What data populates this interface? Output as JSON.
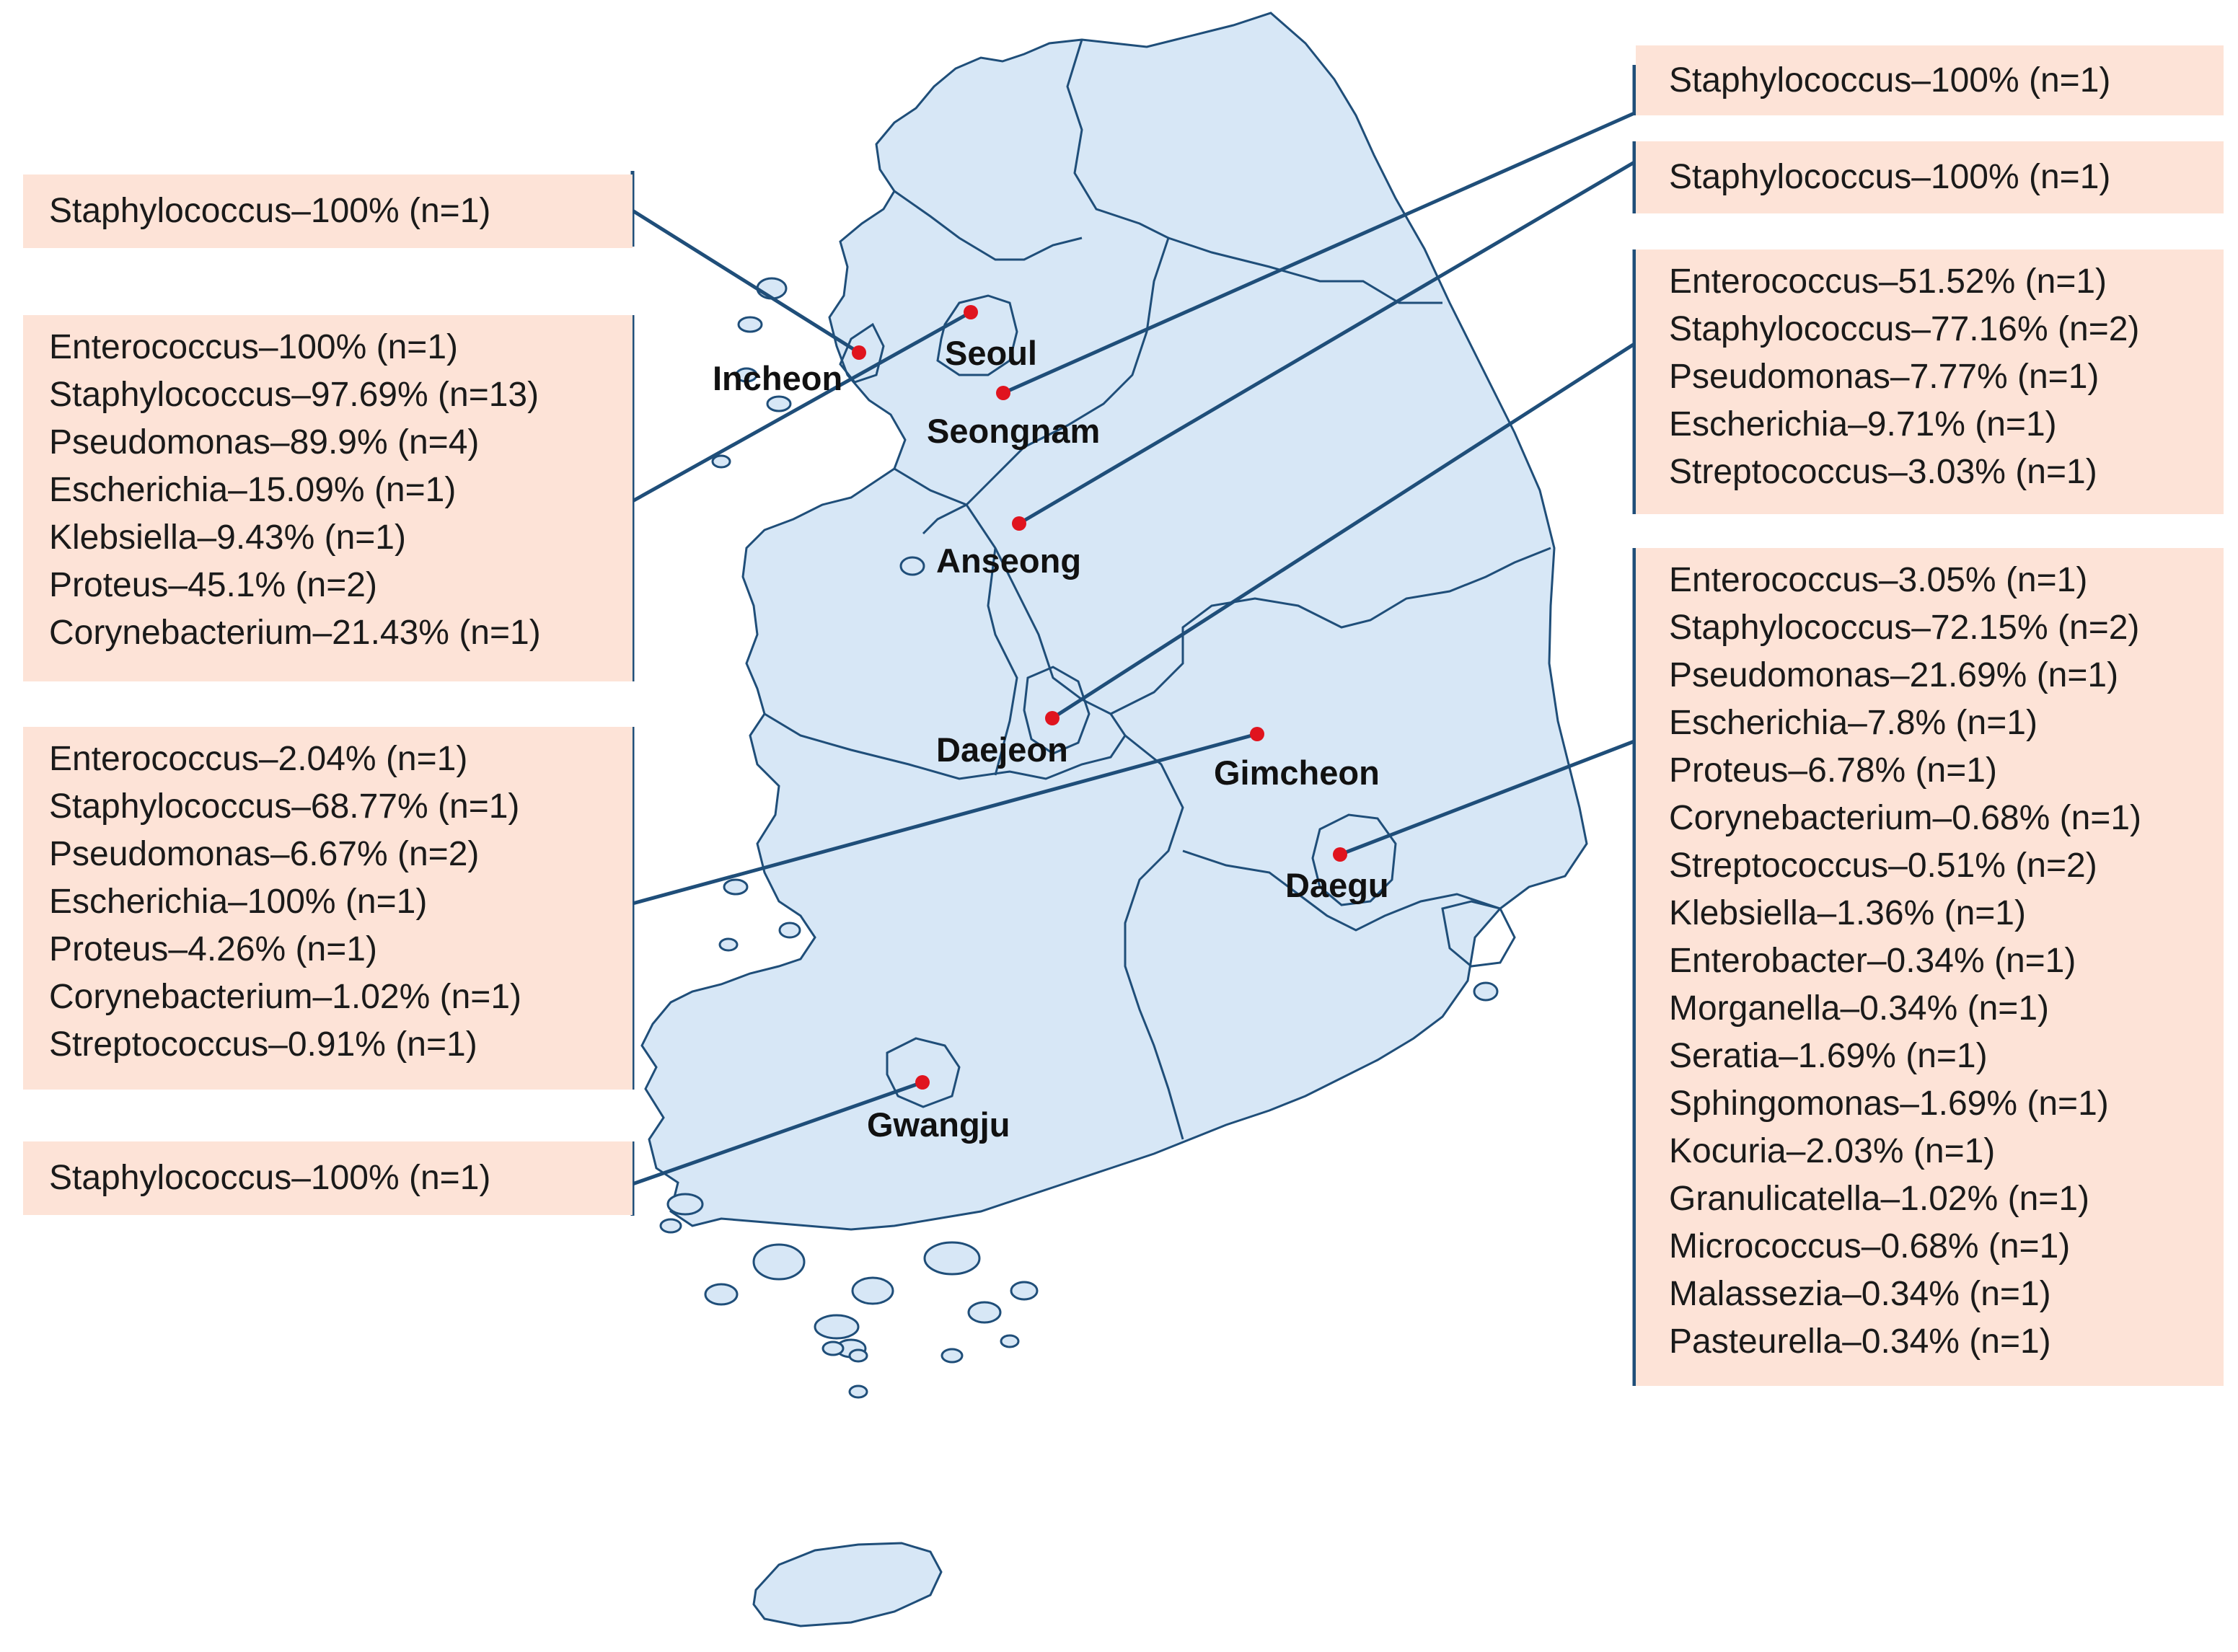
{
  "colors": {
    "land": "#d7e7f6",
    "border": "#1f4e79",
    "leader": "#1f4e79",
    "box_fill": "#fde3d7",
    "city_dot": "#e0141e"
  },
  "cities": [
    {
      "id": "seoul",
      "name": "Seoul"
    },
    {
      "id": "incheon",
      "name": "Incheon"
    },
    {
      "id": "seongnam",
      "name": "Seongnam"
    },
    {
      "id": "anseong",
      "name": "Anseong"
    },
    {
      "id": "daejeon",
      "name": "Daejeon"
    },
    {
      "id": "gimcheon",
      "name": "Gimcheon"
    },
    {
      "id": "daegu",
      "name": "Daegu"
    },
    {
      "id": "gwangju",
      "name": "Gwangju"
    }
  ],
  "boxes": {
    "seoul": [
      "Staphylococcus–100% (n=1)"
    ],
    "incheon": [
      "Enterococcus–100% (n=1)",
      "Staphylococcus–97.69% (n=13)",
      "Pseudomonas–89.9% (n=4)",
      "Escherichia–15.09% (n=1)",
      "Klebsiella–9.43% (n=1)",
      "Proteus–45.1% (n=2)",
      "Corynebacterium–21.43% (n=1)"
    ],
    "gimcheon": [
      "Enterococcus–2.04% (n=1)",
      "Staphylococcus–68.77% (n=1)",
      "Pseudomonas–6.67% (n=2)",
      "Escherichia–100% (n=1)",
      "Proteus–4.26% (n=1)",
      "Corynebacterium–1.02% (n=1)",
      "Streptococcus–0.91% (n=1)"
    ],
    "gwangju": [
      "Staphylococcus–100% (n=1)"
    ],
    "seongnam": [
      "Staphylococcus–100% (n=1)"
    ],
    "anseong": [
      "Staphylococcus–100% (n=1)"
    ],
    "daejeon": [
      "Enterococcus–51.52% (n=1)",
      "Staphylococcus–77.16% (n=2)",
      "Pseudomonas–7.77% (n=1)",
      "Escherichia–9.71% (n=1)",
      "Streptococcus–3.03% (n=1)"
    ],
    "daegu": [
      "Enterococcus–3.05% (n=1)",
      "Staphylococcus–72.15% (n=2)",
      "Pseudomonas–21.69% (n=1)",
      "Escherichia–7.8% (n=1)",
      "Proteus–6.78% (n=1)",
      "Corynebacterium–0.68% (n=1)",
      "Streptococcus–0.51% (n=2)",
      "Klebsiella–1.36% (n=1)",
      "Enterobacter–0.34% (n=1)",
      "Morganella–0.34% (n=1)",
      "Seratia–1.69% (n=1)",
      "Sphingomonas–1.69% (n=1)",
      "Kocuria–2.03% (n=1)",
      "Granulicatella–1.02% (n=1)",
      "Micrococcus–0.68% (n=1)",
      "Malassezia–0.34% (n=1)",
      "Pasteurella–0.34% (n=1)"
    ]
  }
}
